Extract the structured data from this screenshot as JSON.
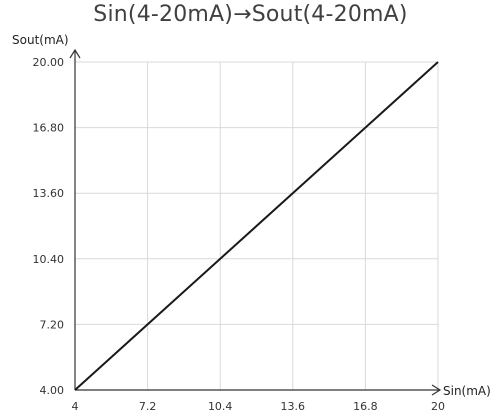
{
  "chart_data": {
    "type": "line",
    "title": "Sin(4-20mA)→Sout(4-20mA)",
    "xlabel": "Sin(mA)",
    "ylabel": "Sout(mA)",
    "xlim": [
      4,
      20
    ],
    "ylim": [
      4,
      20
    ],
    "x_ticks": [
      "4",
      "7.2",
      "10.4",
      "13.6",
      "16.8",
      "20"
    ],
    "y_ticks": [
      "4.00",
      "7.20",
      "10.40",
      "13.60",
      "16.80",
      "20.00"
    ],
    "grid": true,
    "series": [
      {
        "x": [
          4,
          20
        ],
        "y": [
          4,
          20
        ]
      }
    ],
    "colors": {
      "line": "#1a1a1a",
      "grid": "#d9d9d9",
      "axis": "#333333"
    }
  }
}
